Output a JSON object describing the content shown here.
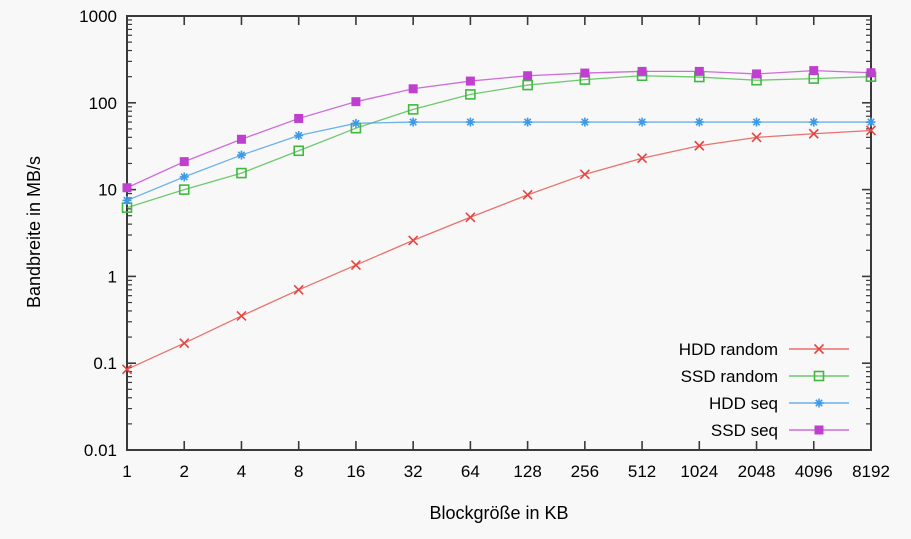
{
  "figure": {
    "background": "#f8f8f8",
    "axis_color": "#3a3a3a",
    "text_color": "#000000"
  },
  "chart_data": {
    "type": "line",
    "title": "",
    "xlabel": "Blockgröße in KB",
    "ylabel": "Bandbreite in MB/s",
    "x_scale": "log2",
    "y_scale": "log10",
    "xlim": [
      1,
      8192
    ],
    "ylim": [
      0.01,
      1000
    ],
    "grid": false,
    "legend_position": "inside-bottom-right",
    "x_tick_labels": [
      "1",
      "2",
      "4",
      "8",
      "16",
      "32",
      "64",
      "128",
      "256",
      "512",
      "1024",
      "2048",
      "4096",
      "8192"
    ],
    "y_tick_labels": [
      "0.01",
      "0.1",
      "1",
      "10",
      "100",
      "1000"
    ],
    "categories": [
      1,
      2,
      4,
      8,
      16,
      32,
      64,
      128,
      256,
      512,
      1024,
      2048,
      4096,
      8192
    ],
    "series": [
      {
        "name": "HDD random",
        "marker": "cross",
        "color": "#e64540",
        "values": [
          0.085,
          0.17,
          0.35,
          0.7,
          1.35,
          2.6,
          4.8,
          8.7,
          15,
          23,
          32,
          40,
          44,
          48
        ]
      },
      {
        "name": "SSD random",
        "marker": "open-square",
        "color": "#3fba3f",
        "values": [
          6.2,
          10,
          15.5,
          28,
          51,
          84,
          125,
          160,
          185,
          205,
          198,
          182,
          190,
          200
        ]
      },
      {
        "name": "HDD seq",
        "marker": "asterisk",
        "color": "#3d99e8",
        "values": [
          7.5,
          14,
          25,
          42,
          58,
          60,
          60,
          60,
          60,
          60,
          60,
          60,
          60,
          60
        ]
      },
      {
        "name": "SSD seq",
        "marker": "filled-square",
        "color": "#bf40cf",
        "values": [
          10.5,
          21,
          38,
          66,
          103,
          145,
          178,
          205,
          220,
          230,
          230,
          215,
          235,
          222
        ]
      }
    ]
  }
}
